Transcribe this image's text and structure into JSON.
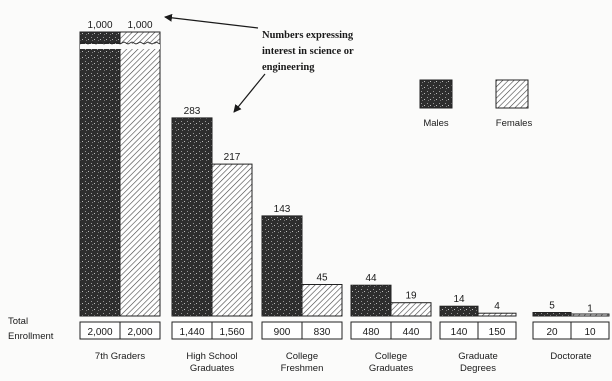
{
  "chart_data": {
    "type": "bar",
    "categories": [
      "7th Graders",
      "High School Graduates",
      "College Freshmen",
      "College Graduates",
      "Graduate Degrees",
      "Doctorate"
    ],
    "category_lines": [
      [
        "7th Graders"
      ],
      [
        "High School",
        "Graduates"
      ],
      [
        "College",
        "Freshmen"
      ],
      [
        "College",
        "Graduates"
      ],
      [
        "Graduate",
        "Degrees"
      ],
      [
        "Doctorate"
      ]
    ],
    "series": [
      {
        "name": "Males",
        "values": [
          1000,
          283,
          143,
          44,
          14,
          5
        ],
        "total_enrollment": [
          "2,000",
          "1,440",
          "900",
          "480",
          "140",
          "20"
        ]
      },
      {
        "name": "Females",
        "values": [
          1000,
          217,
          45,
          19,
          4,
          1
        ],
        "total_enrollment": [
          "2,000",
          "1,560",
          "830",
          "440",
          "150",
          "10"
        ]
      }
    ],
    "value_labels": [
      [
        "1,000",
        "283",
        "143",
        "44",
        "14",
        "5"
      ],
      [
        "1,000",
        "217",
        "45",
        "19",
        "4",
        "1"
      ]
    ],
    "axis_break": true,
    "row_label_lines": [
      "Total",
      "Enrollment"
    ],
    "annotation_lines": [
      "Numbers expressing",
      "interest in science or",
      "engineering"
    ],
    "legend_position": "top-right",
    "colors": {
      "males": "#2e2e2e",
      "females": "#ffffff",
      "hatch": "#444444"
    }
  }
}
